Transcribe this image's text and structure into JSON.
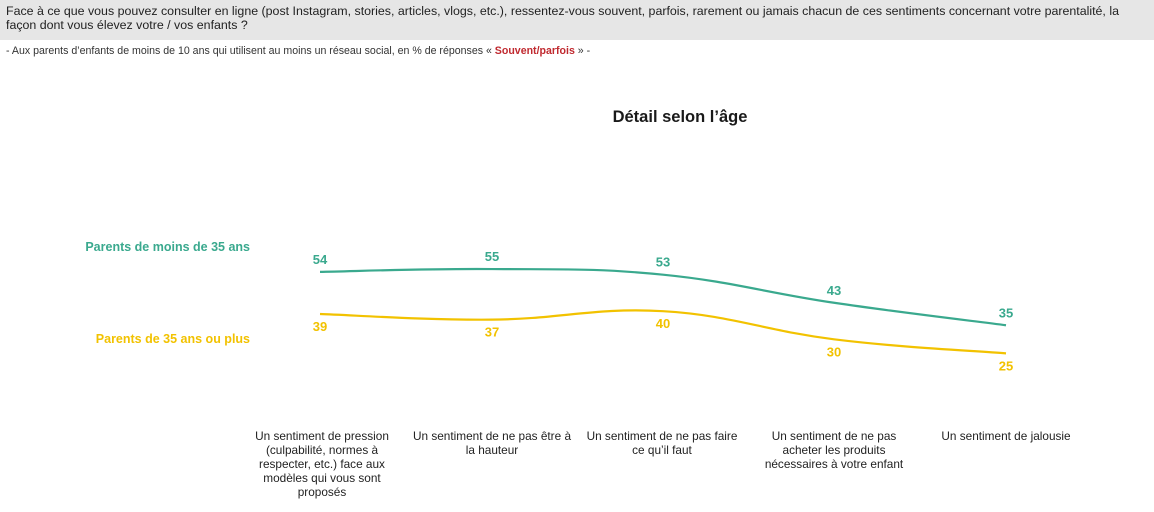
{
  "header": {
    "question": "Face à ce que vous pouvez consulter en ligne (post Instagram, stories, articles, vlogs, etc.), ressentez-vous souvent, parfois, rarement ou jamais chacun de ces sentiments concernant votre parentalité, la façon dont vous élevez votre / vos enfants ?",
    "subtitle_pre": "- Aux parents d’enfants de moins de 10 ans qui utilisent au moins un réseau social, en % de réponses « ",
    "subtitle_highlight": "Souvent/parfois",
    "subtitle_post": " » -"
  },
  "colors": {
    "series_1": "#3aa98e",
    "series_2": "#f2c200",
    "highlight": "#c0292f",
    "header_bg": "#e6e6e6"
  },
  "chart_data": {
    "type": "line",
    "title": "Détail selon l’âge",
    "categories": [
      "Un sentiment de pression (culpabilité, normes à respecter, etc.) face aux modèles qui vous sont proposés",
      "Un sentiment de ne pas être à la hauteur",
      "Un sentiment de ne pas faire ce qu’il faut",
      "Un sentiment de ne pas acheter les produits nécessaires à votre enfant",
      "Un sentiment de jalousie"
    ],
    "series": [
      {
        "name": "Parents de moins de 35 ans",
        "values": [
          54,
          55,
          53,
          43,
          35
        ]
      },
      {
        "name": "Parents de 35 ans ou plus",
        "values": [
          39,
          37,
          40,
          30,
          25
        ]
      }
    ],
    "legend_placement": "left",
    "grid": false,
    "xlabel": "",
    "ylabel": ""
  }
}
